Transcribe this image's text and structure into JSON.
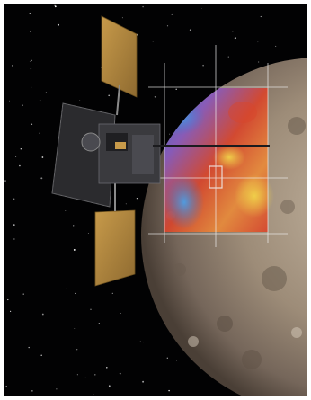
{
  "scene": {
    "kind": "space-illustration",
    "subjects": [
      "spacecraft",
      "planet",
      "false-color-map-overlay",
      "star-field"
    ],
    "colors": {
      "frame": "#ffffff",
      "space": "#020203",
      "planet_light": "#b9aa98",
      "planet_mid": "#8e7d6b",
      "planet_dark": "#4a3f36",
      "map_red": "#d8452c",
      "map_orange": "#e88a3a",
      "map_yellow": "#f0d24a",
      "map_blue": "#3a78d0",
      "map_violet": "#8a5bc0",
      "panel_gold": "#b98a3e",
      "spacecraft_body": "#2b2b2e",
      "grid_line": "#f0f0f0"
    }
  }
}
